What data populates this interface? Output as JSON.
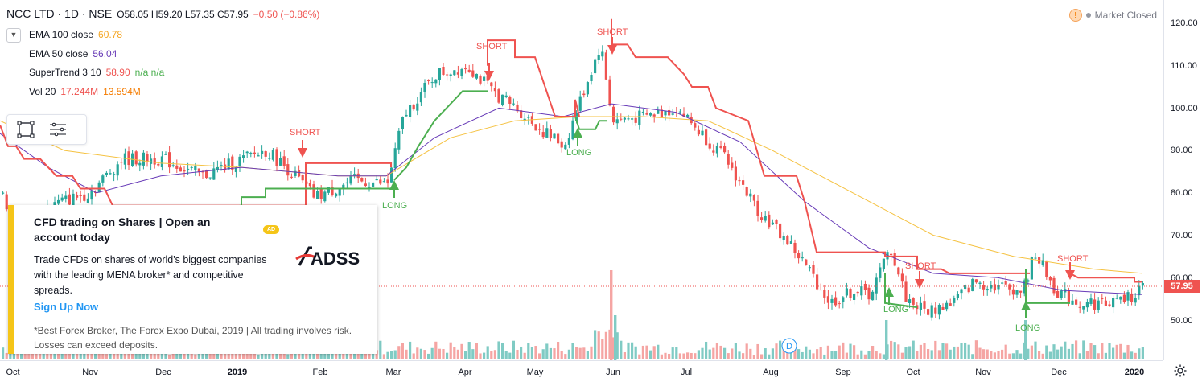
{
  "header": {
    "title": "NCC LTD · 1D · NSE",
    "ohlc": "O58.05 H59.20 L57.35 C57.95",
    "change": "−0.50 (−0.86%)"
  },
  "indicators": [
    {
      "name": "EMA 100 close",
      "value": "60.78",
      "color": "#f5a623"
    },
    {
      "name": "EMA 50 close",
      "value": "56.04",
      "color": "#673ab7"
    },
    {
      "name": "SuperTrend 3 10",
      "value": "58.90",
      "extra": "n/a n/a",
      "color": "#ef5350"
    },
    {
      "name": "Vol 20",
      "value": "17.244M",
      "value2": "13.594M",
      "color": "#ef5350",
      "color2": "#f57c00"
    }
  ],
  "market_status": "Market Closed",
  "price_axis": {
    "ticks": [
      "120.00",
      "110.00",
      "100.00",
      "90.00",
      "80.00",
      "70.00",
      "60.00",
      "50.00"
    ],
    "last_price": "57.95"
  },
  "time_axis": {
    "ticks": [
      "Oct",
      "Nov",
      "Dec",
      "2019",
      "Feb",
      "Mar",
      "Apr",
      "May",
      "Jun",
      "Jul",
      "Aug",
      "Sep",
      "Oct",
      "Nov",
      "Dec",
      "2020"
    ]
  },
  "signals": {
    "short": "SHORT",
    "long": "LONG",
    "dividend": "D"
  },
  "ad": {
    "badge": "AD",
    "title": "CFD trading on Shares | Open an account today",
    "body": "Trade CFDs on shares of world's biggest companies with the leading MENA broker* and competitive spreads.",
    "cta": "Sign Up Now",
    "disclaimer": "*Best Forex Broker, The Forex Expo Dubai, 2019 | All trading involves risk. Losses can exceed deposits.",
    "logo_text": "ADSS"
  },
  "colors": {
    "up": "#26a69a",
    "down": "#ef5350",
    "supertrend_up": "#4caf50",
    "supertrend_down": "#ef5350",
    "ema100": "#f5c242",
    "ema50": "#673ab7",
    "ad_accent": "#f5c518",
    "link": "#2196f3"
  }
}
